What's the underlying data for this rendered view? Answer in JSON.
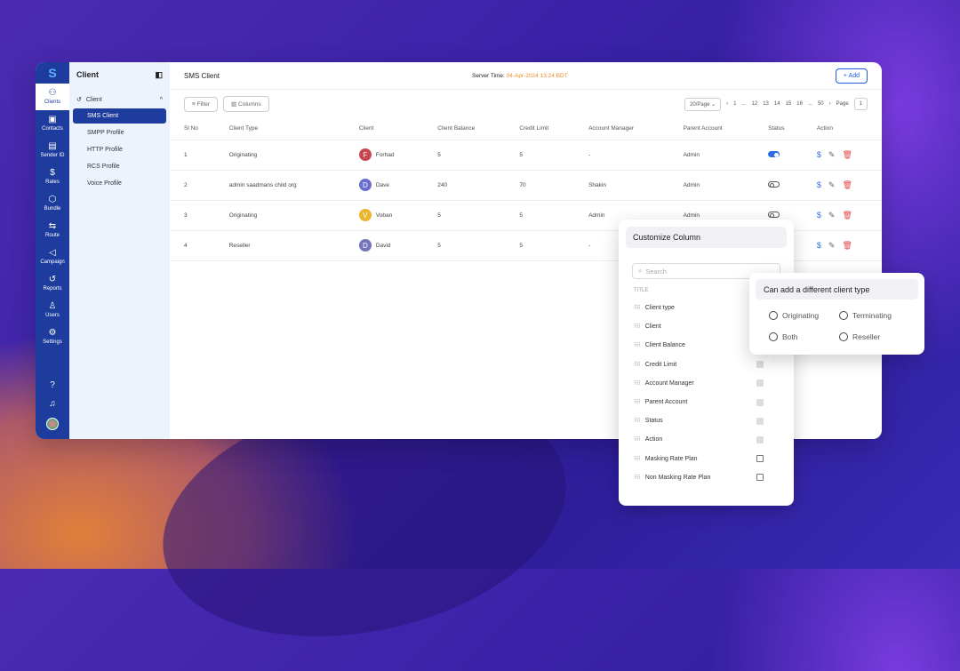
{
  "rail": {
    "items": [
      {
        "label": "Clients",
        "icon": "users-icon",
        "glyph": "⚇"
      },
      {
        "label": "Contacts",
        "icon": "contact-icon",
        "glyph": "▣"
      },
      {
        "label": "Sender ID",
        "icon": "file-icon",
        "glyph": "▤"
      },
      {
        "label": "Rates",
        "icon": "dollar-icon",
        "glyph": "$"
      },
      {
        "label": "Bundle",
        "icon": "box-icon",
        "glyph": "⬡"
      },
      {
        "label": "Route",
        "icon": "route-icon",
        "glyph": "⇆"
      },
      {
        "label": "Campaign",
        "icon": "megaphone-icon",
        "glyph": "◁"
      },
      {
        "label": "Reports",
        "icon": "history-icon",
        "glyph": "↺"
      },
      {
        "label": "Users",
        "icon": "user-icon",
        "glyph": "♙"
      },
      {
        "label": "Settings",
        "icon": "gear-icon",
        "glyph": "⚙"
      }
    ],
    "logo": "S"
  },
  "submenu": {
    "title": "Client",
    "group": "Client",
    "items": [
      "SMS Client",
      "SMPP Profile",
      "HTTP Profile",
      "RCS Profile",
      "Voice Profile"
    ]
  },
  "header": {
    "title": "SMS Client",
    "server_label": "Server Time:",
    "server_time": "04-Apr-2024 13:24 BDT",
    "add": "+ Add"
  },
  "toolbar": {
    "filter": "Filter",
    "columns": "Columns",
    "page_size": "20/Page",
    "pages": [
      "1",
      "...",
      "12",
      "13",
      "14",
      "15",
      "16",
      "...",
      "50"
    ],
    "page_label": "Page",
    "page_value": "1"
  },
  "table": {
    "headers": [
      "Sl No",
      "Client Type",
      "Client",
      "Client Balance",
      "Credit Limit",
      "Account Manager",
      "Parent Account",
      "Status",
      "Action"
    ],
    "rows": [
      {
        "no": "1",
        "type": "Originating",
        "initial": "F",
        "client": "Forhad",
        "color": "#c9484f",
        "balance": "5",
        "credit": "5",
        "manager": "-",
        "parent": "Admin",
        "status": true
      },
      {
        "no": "2",
        "type": "admin saadmans child org",
        "initial": "D",
        "client": "Dave",
        "color": "#6a6fcf",
        "balance": "240",
        "credit": "70",
        "manager": "Shakin",
        "parent": "Admin",
        "status": false
      },
      {
        "no": "3",
        "type": "Originating",
        "initial": "V",
        "client": "Voban",
        "color": "#e9b52c",
        "balance": "5",
        "credit": "5",
        "manager": "Admin",
        "parent": "Admin",
        "status": false
      },
      {
        "no": "4",
        "type": "Reseller",
        "initial": "D",
        "client": "David",
        "color": "#7273b8",
        "balance": "5",
        "credit": "5",
        "manager": "-",
        "parent": "Admin",
        "status": null
      }
    ]
  },
  "customize": {
    "title": "Customize Column",
    "search_placeholder": "Search",
    "list_title": "TITLE",
    "columns": [
      {
        "label": "Client type",
        "checked": true
      },
      {
        "label": "Client",
        "checked": true
      },
      {
        "label": "Client Balance",
        "checked": true
      },
      {
        "label": "Credit Limit",
        "checked": true
      },
      {
        "label": "Account Manager",
        "checked": true
      },
      {
        "label": "Parent Account",
        "checked": true
      },
      {
        "label": "Status",
        "checked": true
      },
      {
        "label": "Action",
        "checked": true
      },
      {
        "label": "Masking Rate Plan",
        "checked": false
      },
      {
        "label": "Non Masking Rate Plan",
        "checked": false
      }
    ]
  },
  "client_type": {
    "title": "Can add a different client type",
    "options": [
      "Originating",
      "Terminating",
      "Both",
      "Reseller"
    ]
  }
}
